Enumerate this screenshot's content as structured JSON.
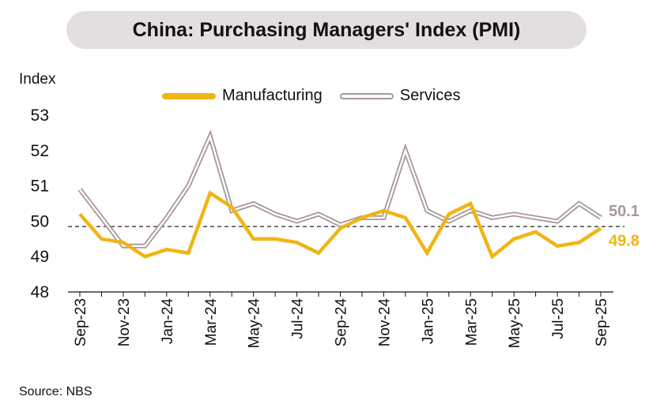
{
  "chart_data": {
    "type": "line",
    "title": "China: Purchasing Managers' Index (PMI)",
    "ylabel": "Index",
    "xlabel": "",
    "ylim": [
      48,
      53
    ],
    "yticks": [
      48,
      49,
      50,
      51,
      52,
      53
    ],
    "reference_line": 49.85,
    "x": [
      "Sep-23",
      "Oct-23",
      "Nov-23",
      "Dec-23",
      "Jan-24",
      "Feb-24",
      "Mar-24",
      "Apr-24",
      "May-24",
      "Jun-24",
      "Jul-24",
      "Aug-24",
      "Sep-24",
      "Oct-24",
      "Nov-24",
      "Dec-24",
      "Jan-25",
      "Feb-25",
      "Mar-25",
      "Apr-25",
      "May-25",
      "Jun-25",
      "Jul-25",
      "Aug-25",
      "Sep-25"
    ],
    "x_tick_labels": [
      "Sep-23",
      "Nov-23",
      "Jan-24",
      "Mar-24",
      "May-24",
      "Jul-24",
      "Sep-24",
      "Nov-24",
      "Jan-25",
      "Mar-25",
      "May-25",
      "Jul-25",
      "Sep-25"
    ],
    "series": [
      {
        "name": "Manufacturing",
        "color": "#f0b514",
        "values": [
          50.2,
          49.5,
          49.4,
          49.0,
          49.2,
          49.1,
          50.8,
          50.4,
          49.5,
          49.5,
          49.4,
          49.1,
          49.8,
          50.1,
          50.3,
          50.1,
          49.1,
          50.2,
          50.5,
          49.0,
          49.5,
          49.7,
          49.3,
          49.4,
          49.8
        ],
        "end_label": "49.8"
      },
      {
        "name": "Services",
        "color": "#a99898",
        "values": [
          50.9,
          50.1,
          49.3,
          49.3,
          50.1,
          51.0,
          52.4,
          50.3,
          50.5,
          50.2,
          50.0,
          50.2,
          49.9,
          50.1,
          50.1,
          52.0,
          50.3,
          50.0,
          50.3,
          50.1,
          50.2,
          50.1,
          50.0,
          50.5,
          50.1
        ],
        "end_label": "50.1"
      }
    ],
    "legend_position": "top"
  },
  "source": "Source: NBS"
}
